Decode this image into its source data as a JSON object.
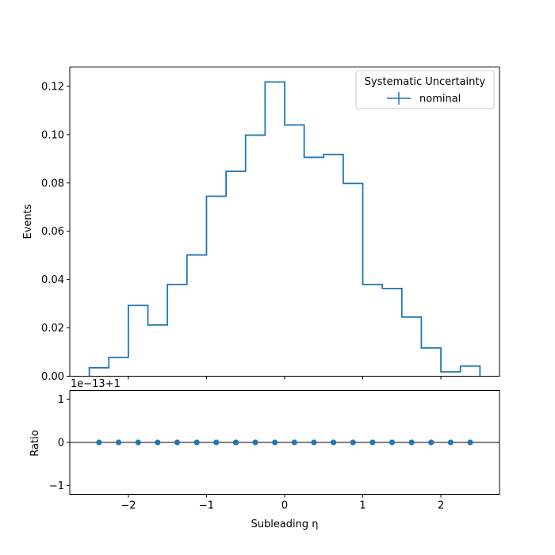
{
  "chart_data": [
    {
      "type": "step",
      "panel": "main",
      "ylabel": "Events",
      "ylim": [
        0,
        0.128
      ],
      "yticks": [
        0.0,
        0.02,
        0.04,
        0.06,
        0.08,
        0.1,
        0.12
      ],
      "ytick_labels": [
        "0.00",
        "0.02",
        "0.04",
        "0.06",
        "0.08",
        "0.10",
        "0.12"
      ],
      "xlim": [
        -2.75,
        2.75
      ],
      "bin_edges": [
        -2.5,
        -2.25,
        -2.0,
        -1.75,
        -1.5,
        -1.25,
        -1.0,
        -0.75,
        -0.5,
        -0.25,
        0.0,
        0.25,
        0.5,
        0.75,
        1.0,
        1.25,
        1.5,
        1.75,
        2.0,
        2.25,
        2.5
      ],
      "series": [
        {
          "name": "nominal",
          "color": "#1f77b4",
          "values": [
            0.0035,
            0.0078,
            0.0293,
            0.0212,
            0.038,
            0.0502,
            0.0745,
            0.0848,
            0.0998,
            0.1218,
            0.104,
            0.0906,
            0.0918,
            0.0798,
            0.038,
            0.0363,
            0.0245,
            0.0117,
            0.0018,
            0.0042
          ]
        }
      ],
      "legend": {
        "title": "Systematic Uncertainty",
        "entries": [
          "nominal"
        ],
        "placement": "top-right"
      },
      "grid": false
    },
    {
      "type": "scatter",
      "panel": "ratio",
      "ylabel": "Ratio",
      "xlabel": "Subleading η",
      "offset_text": "1e−13+1",
      "ylim": [
        -1.2,
        1.2
      ],
      "yticks": [
        -1,
        0,
        1
      ],
      "ytick_labels": [
        "−1",
        "0",
        "1"
      ],
      "xlim": [
        -2.75,
        2.75
      ],
      "xticks": [
        -2,
        -1,
        0,
        1,
        2
      ],
      "xtick_labels": [
        "−2",
        "−1",
        "0",
        "1",
        "2"
      ],
      "reference_line": 0,
      "series": [
        {
          "name": "nominal",
          "color": "#1f77b4",
          "x": [
            -2.375,
            -2.125,
            -1.875,
            -1.625,
            -1.375,
            -1.125,
            -0.875,
            -0.625,
            -0.375,
            -0.125,
            0.125,
            0.375,
            0.625,
            0.875,
            1.125,
            1.375,
            1.625,
            1.875,
            2.125,
            2.375
          ],
          "y": [
            0,
            0,
            0,
            0,
            0,
            0,
            0,
            0,
            0,
            0,
            0,
            0,
            0,
            0,
            0,
            0,
            0,
            0,
            0,
            0
          ]
        }
      ],
      "grid": false
    }
  ]
}
